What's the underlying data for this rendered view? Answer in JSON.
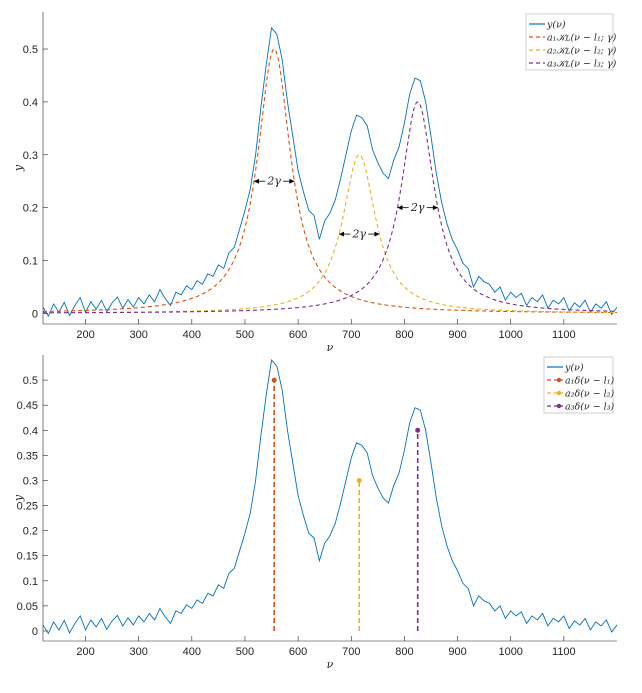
{
  "chart_data": [
    {
      "type": "line",
      "xlabel": "ν",
      "ylabel": "y",
      "xlim": [
        120,
        1200
      ],
      "ylim": [
        -0.02,
        0.57
      ],
      "xticks": [
        200,
        300,
        400,
        500,
        600,
        700,
        800,
        900,
        1000,
        1100
      ],
      "yticks": [
        0,
        0.1,
        0.2,
        0.3,
        0.4,
        0.5
      ],
      "ytick_labels": [
        "0",
        "0.1",
        "0.2",
        "0.3",
        "0.4",
        "0.5"
      ],
      "grid": false,
      "legend_placement": "top-right",
      "legend": [
        "y(ν)",
        "a₁𝒦ʟ(ν − l₁; γ)",
        "a₂𝒦ʟ(ν − l₂; γ)",
        "a₃𝒦ʟ(ν − l₃; γ)"
      ],
      "components": [
        {
          "a": 0.5,
          "l": 555,
          "gamma": 38,
          "color": "#D95319",
          "style": "dashed"
        },
        {
          "a": 0.3,
          "l": 715,
          "gamma": 38,
          "color": "#EDB120",
          "style": "dashed"
        },
        {
          "a": 0.4,
          "l": 825,
          "gamma": 38,
          "color": "#7E2F8E",
          "style": "dashed"
        }
      ],
      "annotations": [
        {
          "text": "2γ",
          "from": 517,
          "to": 593,
          "y": 0.25
        },
        {
          "text": "2γ",
          "from": 677,
          "to": 753,
          "y": 0.15
        },
        {
          "text": "2γ",
          "from": 787,
          "to": 863,
          "y": 0.2
        }
      ]
    },
    {
      "type": "line",
      "xlabel": "ν",
      "ylabel": "y",
      "xlim": [
        120,
        1200
      ],
      "ylim": [
        -0.02,
        0.55
      ],
      "xticks": [
        200,
        300,
        400,
        500,
        600,
        700,
        800,
        900,
        1000,
        1100
      ],
      "yticks": [
        0,
        0.05,
        0.1,
        0.15,
        0.2,
        0.25,
        0.3,
        0.35,
        0.4,
        0.45,
        0.5
      ],
      "ytick_labels": [
        "0",
        "0.05",
        "0.1",
        "0.15",
        "0.2",
        "0.25",
        "0.3",
        "0.35",
        "0.4",
        "0.45",
        "0.5"
      ],
      "grid": false,
      "legend_placement": "top-right",
      "legend": [
        "y(ν)",
        "a₁δ(ν − l₁)",
        "a₂δ(ν − l₂)",
        "a₃δ(ν − l₃)"
      ],
      "stems": [
        {
          "x": 555,
          "y": 0.5,
          "color": "#D95319"
        },
        {
          "x": 715,
          "y": 0.3,
          "color": "#EDB120"
        },
        {
          "x": 825,
          "y": 0.4,
          "color": "#7E2F8E"
        }
      ]
    }
  ],
  "series": {
    "color": "#0072BD",
    "x": [
      120,
      130,
      140,
      150,
      160,
      170,
      180,
      190,
      200,
      210,
      220,
      230,
      240,
      250,
      260,
      270,
      280,
      290,
      300,
      310,
      320,
      330,
      340,
      350,
      360,
      370,
      380,
      390,
      400,
      410,
      420,
      430,
      440,
      450,
      460,
      470,
      480,
      490,
      500,
      510,
      520,
      530,
      540,
      550,
      560,
      570,
      580,
      590,
      600,
      610,
      620,
      630,
      640,
      650,
      660,
      670,
      680,
      690,
      700,
      710,
      720,
      730,
      740,
      750,
      760,
      770,
      780,
      790,
      800,
      810,
      820,
      830,
      840,
      850,
      860,
      870,
      880,
      890,
      900,
      910,
      920,
      930,
      940,
      950,
      960,
      970,
      980,
      990,
      1000,
      1010,
      1020,
      1030,
      1040,
      1050,
      1060,
      1070,
      1080,
      1090,
      1100,
      1110,
      1120,
      1130,
      1140,
      1150,
      1160,
      1170,
      1180,
      1190,
      1200
    ],
    "y": [
      0.012,
      -0.005,
      0.018,
      0.002,
      0.021,
      -0.004,
      0.015,
      0.03,
      0.002,
      0.022,
      0.008,
      0.025,
      0.003,
      0.02,
      0.031,
      0.01,
      0.026,
      0.012,
      0.03,
      0.018,
      0.035,
      0.022,
      0.045,
      0.028,
      0.015,
      0.04,
      0.035,
      0.052,
      0.045,
      0.062,
      0.055,
      0.075,
      0.07,
      0.092,
      0.085,
      0.115,
      0.125,
      0.16,
      0.195,
      0.235,
      0.3,
      0.39,
      0.47,
      0.54,
      0.528,
      0.48,
      0.4,
      0.335,
      0.27,
      0.23,
      0.195,
      0.185,
      0.14,
      0.175,
      0.19,
      0.215,
      0.255,
      0.3,
      0.345,
      0.375,
      0.37,
      0.355,
      0.31,
      0.285,
      0.265,
      0.255,
      0.29,
      0.315,
      0.36,
      0.415,
      0.445,
      0.44,
      0.4,
      0.335,
      0.265,
      0.21,
      0.17,
      0.14,
      0.12,
      0.095,
      0.085,
      0.05,
      0.07,
      0.06,
      0.055,
      0.04,
      0.05,
      0.025,
      0.04,
      0.03,
      0.038,
      0.015,
      0.03,
      0.022,
      0.035,
      0.01,
      0.025,
      0.018,
      0.03,
      0.005,
      0.02,
      0.012,
      0.025,
      0.002,
      0.018,
      0.01,
      0.022,
      -0.002,
      0.012
    ]
  }
}
